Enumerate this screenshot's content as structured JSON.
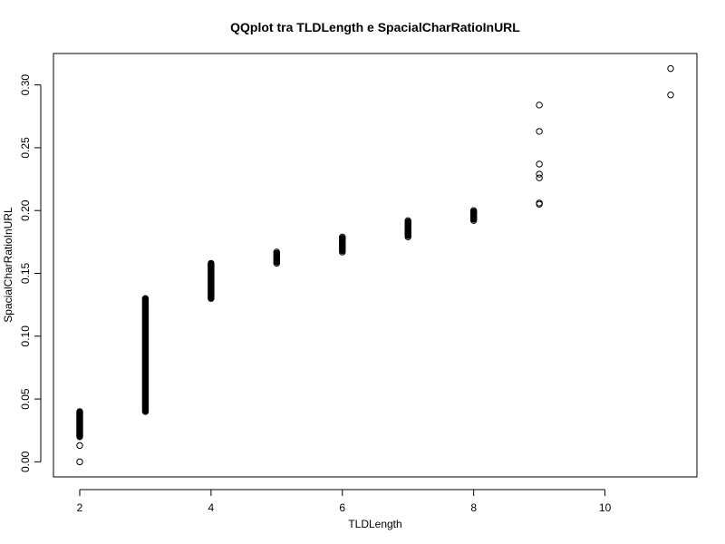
{
  "chart_data": {
    "type": "scatter",
    "title": "QQplot tra TLDLength e SpacialCharRatioInURL",
    "xlabel": "TLDLength",
    "ylabel": "SpacialCharRatioInURL",
    "xlim": [
      1.6,
      11.4
    ],
    "ylim": [
      -0.012,
      0.325
    ],
    "xticks": [
      2,
      4,
      6,
      8,
      10
    ],
    "yticks": [
      0.0,
      0.05,
      0.1,
      0.15,
      0.2,
      0.25,
      0.3
    ],
    "ytick_labels": [
      "0.00",
      "0.05",
      "0.10",
      "0.15",
      "0.20",
      "0.25",
      "0.30"
    ],
    "xtick_labels": [
      "2",
      "4",
      "6",
      "8",
      "10"
    ],
    "grid": false,
    "marker": "open-circle",
    "dense_bands": [
      {
        "x": 2,
        "y_min": 0.02,
        "y_max": 0.04
      },
      {
        "x": 3,
        "y_min": 0.04,
        "y_max": 0.13
      },
      {
        "x": 4,
        "y_min": 0.13,
        "y_max": 0.158
      },
      {
        "x": 5,
        "y_min": 0.159,
        "y_max": 0.166
      },
      {
        "x": 6,
        "y_min": 0.168,
        "y_max": 0.178
      },
      {
        "x": 7,
        "y_min": 0.18,
        "y_max": 0.191
      },
      {
        "x": 8,
        "y_min": 0.193,
        "y_max": 0.199
      }
    ],
    "points": [
      {
        "x": 2,
        "y": 0.0
      },
      {
        "x": 2,
        "y": 0.013
      },
      {
        "x": 5,
        "y": 0.158
      },
      {
        "x": 5,
        "y": 0.167
      },
      {
        "x": 6,
        "y": 0.167
      },
      {
        "x": 6,
        "y": 0.179
      },
      {
        "x": 7,
        "y": 0.179
      },
      {
        "x": 7,
        "y": 0.182
      },
      {
        "x": 7,
        "y": 0.186
      },
      {
        "x": 7,
        "y": 0.189
      },
      {
        "x": 7,
        "y": 0.192
      },
      {
        "x": 8,
        "y": 0.192
      },
      {
        "x": 8,
        "y": 0.195
      },
      {
        "x": 8,
        "y": 0.198
      },
      {
        "x": 8,
        "y": 0.2
      },
      {
        "x": 9,
        "y": 0.205
      },
      {
        "x": 9,
        "y": 0.206
      },
      {
        "x": 9,
        "y": 0.226
      },
      {
        "x": 9,
        "y": 0.229
      },
      {
        "x": 9,
        "y": 0.237
      },
      {
        "x": 9,
        "y": 0.263
      },
      {
        "x": 9,
        "y": 0.284
      },
      {
        "x": 11,
        "y": 0.292
      },
      {
        "x": 11,
        "y": 0.313
      }
    ]
  }
}
